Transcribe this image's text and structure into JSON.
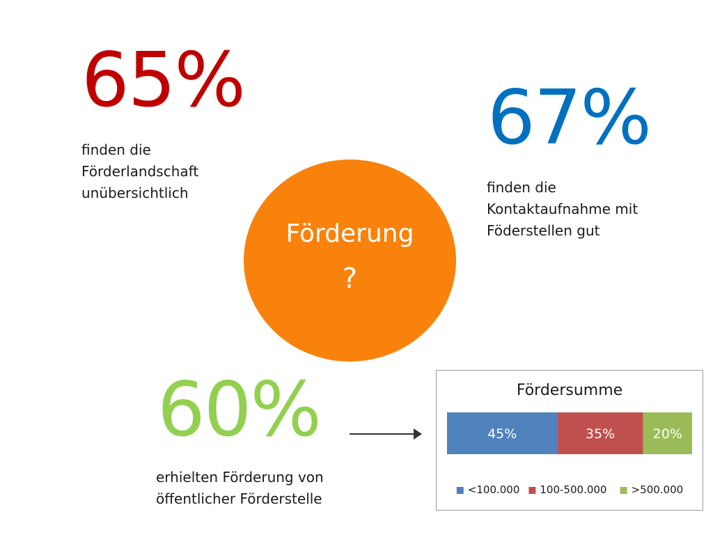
{
  "stat_1": {
    "value": "65%",
    "lines": [
      "finden die",
      "Förderlandschaft",
      "unübersichtlich"
    ],
    "color": "#c00000"
  },
  "stat_2": {
    "value": "67%",
    "lines": [
      "finden die",
      "Kontaktaufnahme mit",
      "Föderstellen gut"
    ],
    "color": "#0070c0"
  },
  "stat_3": {
    "value": "60%",
    "lines": [
      "erhielten Förderung von",
      "öffentlicher Förderstelle"
    ],
    "color": "#92d050"
  },
  "center": {
    "title": "Förderung",
    "question": "?",
    "color": "#f9820c"
  },
  "arrow": {
    "icon": "arrow-right-icon"
  },
  "chart_data": {
    "type": "bar",
    "orientation": "horizontal-stacked-100",
    "title": "Fördersumme",
    "categories": [
      ""
    ],
    "series": [
      {
        "name": "<100.000",
        "values": [
          45
        ],
        "label": "45%",
        "color": "#4f81bd"
      },
      {
        "name": "100-500.000",
        "values": [
          35
        ],
        "label": "35%",
        "color": "#c0504d"
      },
      {
        "name": ">500.000",
        "values": [
          20
        ],
        "label": "20%",
        "color": "#9bbb59"
      }
    ],
    "xlim": [
      0,
      100
    ],
    "grid": false,
    "legend_position": "bottom"
  }
}
